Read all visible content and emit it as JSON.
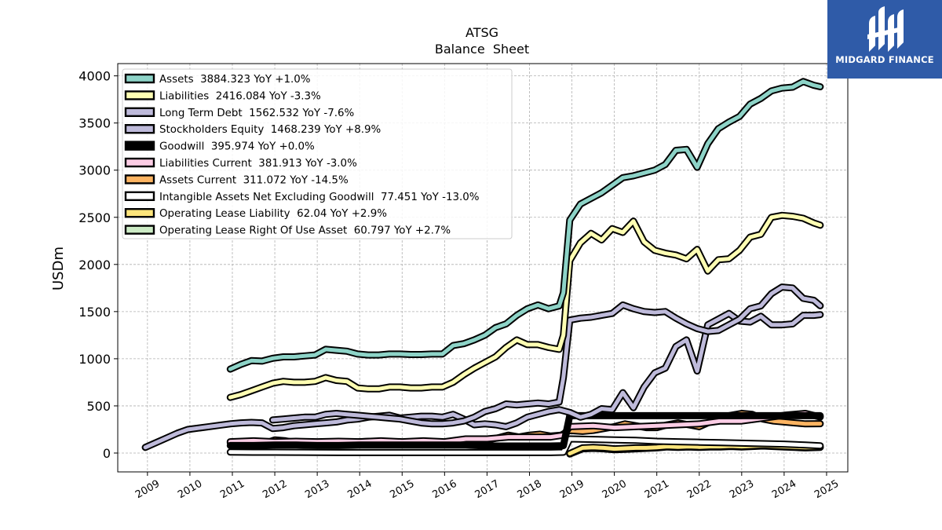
{
  "brand": {
    "name": "MIDGARD FINANCE"
  },
  "chart_data": {
    "type": "line",
    "title": "ATSG",
    "subtitle": "Balance  Sheet",
    "ylabel": "USDm",
    "xlabel": "",
    "ylim": [
      -200,
      4130
    ],
    "xlim": [
      2008.3,
      2025.5
    ],
    "yticks": [
      0,
      500,
      1000,
      1500,
      2000,
      2500,
      3000,
      3500,
      4000
    ],
    "xticks": [
      "2009",
      "2010",
      "2011",
      "2012",
      "2013",
      "2014",
      "2015",
      "2016",
      "2017",
      "2018",
      "2019",
      "2020",
      "2021",
      "2022",
      "2023",
      "2024",
      "2025"
    ],
    "grid": true,
    "legend_position": "top-left",
    "series": [
      {
        "name": "Assets  3884.323 YoY +1.0%",
        "color": "#8dd3c7",
        "x": [
          2010.95,
          2011.2,
          2011.45,
          2011.7,
          2011.95,
          2012.2,
          2012.45,
          2012.7,
          2012.95,
          2013.2,
          2013.45,
          2013.7,
          2013.95,
          2014.2,
          2014.45,
          2014.7,
          2014.95,
          2015.2,
          2015.45,
          2015.7,
          2015.95,
          2016.2,
          2016.45,
          2016.7,
          2016.95,
          2017.2,
          2017.45,
          2017.7,
          2017.95,
          2018.2,
          2018.45,
          2018.7,
          2018.8,
          2018.95,
          2019.2,
          2019.45,
          2019.7,
          2019.95,
          2020.2,
          2020.45,
          2020.7,
          2020.95,
          2021.2,
          2021.45,
          2021.7,
          2021.95,
          2022.2,
          2022.45,
          2022.7,
          2022.95,
          2023.2,
          2023.45,
          2023.7,
          2023.95,
          2024.2,
          2024.45,
          2024.7,
          2024.85
        ],
        "values": [
          890,
          940,
          980,
          975,
          1005,
          1020,
          1020,
          1030,
          1040,
          1100,
          1090,
          1080,
          1050,
          1040,
          1040,
          1050,
          1050,
          1045,
          1045,
          1050,
          1050,
          1140,
          1160,
          1200,
          1250,
          1330,
          1370,
          1460,
          1530,
          1570,
          1530,
          1560,
          1700,
          2470,
          2640,
          2700,
          2760,
          2840,
          2920,
          2940,
          2970,
          3000,
          3060,
          3210,
          3220,
          3030,
          3280,
          3440,
          3510,
          3570,
          3700,
          3760,
          3840,
          3870,
          3880,
          3940,
          3900,
          3884
        ]
      },
      {
        "name": "Liabilities  2416.084 YoY -3.3%",
        "color": "#ffffb3",
        "x": [
          2010.95,
          2011.2,
          2011.45,
          2011.7,
          2011.95,
          2012.2,
          2012.45,
          2012.7,
          2012.95,
          2013.2,
          2013.45,
          2013.7,
          2013.95,
          2014.2,
          2014.45,
          2014.7,
          2014.95,
          2015.2,
          2015.45,
          2015.7,
          2015.95,
          2016.2,
          2016.45,
          2016.7,
          2016.95,
          2017.2,
          2017.45,
          2017.7,
          2017.95,
          2018.2,
          2018.45,
          2018.7,
          2018.8,
          2018.95,
          2019.2,
          2019.45,
          2019.7,
          2019.95,
          2020.2,
          2020.45,
          2020.7,
          2020.95,
          2021.2,
          2021.45,
          2021.7,
          2021.95,
          2022.2,
          2022.45,
          2022.7,
          2022.95,
          2023.2,
          2023.45,
          2023.7,
          2023.95,
          2024.2,
          2024.45,
          2024.7,
          2024.85
        ],
        "values": [
          590,
          620,
          660,
          700,
          740,
          760,
          750,
          750,
          760,
          800,
          770,
          760,
          690,
          680,
          680,
          700,
          700,
          690,
          690,
          700,
          700,
          750,
          830,
          900,
          960,
          1020,
          1120,
          1200,
          1150,
          1150,
          1120,
          1100,
          1250,
          2040,
          2230,
          2330,
          2260,
          2380,
          2340,
          2460,
          2240,
          2150,
          2120,
          2100,
          2060,
          2160,
          1930,
          2050,
          2060,
          2150,
          2290,
          2320,
          2500,
          2520,
          2510,
          2490,
          2440,
          2416
        ]
      },
      {
        "name": "Long Term Debt  1562.532 YoY -7.6%",
        "color": "#bebada",
        "x": [
          2011.95,
          2012.2,
          2012.45,
          2012.7,
          2012.95,
          2013.2,
          2013.45,
          2013.7,
          2013.95,
          2014.2,
          2014.45,
          2014.7,
          2014.95,
          2015.2,
          2015.45,
          2015.7,
          2015.95,
          2016.2,
          2016.45,
          2016.7,
          2016.95,
          2017.2,
          2017.45,
          2017.7,
          2017.95,
          2018.2,
          2018.45,
          2018.7,
          2018.8,
          2018.95,
          2019.2,
          2019.45,
          2019.7,
          2019.95,
          2020.2,
          2020.45,
          2020.7,
          2020.95,
          2021.2,
          2021.45,
          2021.7,
          2021.95,
          2022.2,
          2022.45,
          2022.7,
          2022.95,
          2023.2,
          2023.45,
          2023.7,
          2023.95,
          2024.2,
          2024.45,
          2024.7,
          2024.85
        ],
        "values": [
          350,
          360,
          370,
          380,
          380,
          410,
          420,
          410,
          400,
          390,
          380,
          370,
          360,
          340,
          320,
          310,
          310,
          320,
          340,
          380,
          440,
          470,
          520,
          510,
          520,
          530,
          520,
          540,
          800,
          1410,
          1430,
          1440,
          1460,
          1480,
          1570,
          1530,
          1500,
          1490,
          1500,
          1430,
          1370,
          1320,
          1290,
          1300,
          1360,
          1420,
          1530,
          1560,
          1690,
          1760,
          1750,
          1640,
          1620,
          1562
        ]
      },
      {
        "name": "Stockholders Equity  1468.239 YoY +8.9%",
        "color": "#bebada",
        "x": [
          2008.95,
          2009.2,
          2009.45,
          2009.7,
          2009.95,
          2010.2,
          2010.45,
          2010.7,
          2010.95,
          2011.2,
          2011.45,
          2011.7,
          2011.95,
          2012.2,
          2012.45,
          2012.7,
          2012.95,
          2013.2,
          2013.45,
          2013.7,
          2013.95,
          2014.2,
          2014.45,
          2014.7,
          2014.95,
          2015.2,
          2015.45,
          2015.7,
          2015.95,
          2016.2,
          2016.45,
          2016.7,
          2016.95,
          2017.2,
          2017.45,
          2017.7,
          2017.95,
          2018.2,
          2018.45,
          2018.7,
          2018.95,
          2019.2,
          2019.45,
          2019.7,
          2019.95,
          2020.2,
          2020.45,
          2020.7,
          2020.95,
          2021.2,
          2021.45,
          2021.7,
          2021.95,
          2022.2,
          2022.45,
          2022.7,
          2022.95,
          2023.2,
          2023.45,
          2023.7,
          2023.95,
          2024.2,
          2024.45,
          2024.7,
          2024.85
        ],
        "values": [
          60,
          110,
          160,
          210,
          250,
          265,
          280,
          295,
          310,
          320,
          325,
          320,
          260,
          270,
          290,
          300,
          310,
          320,
          330,
          350,
          360,
          380,
          390,
          400,
          370,
          380,
          390,
          390,
          380,
          410,
          360,
          300,
          310,
          300,
          280,
          320,
          380,
          410,
          440,
          460,
          430,
          380,
          410,
          470,
          460,
          640,
          480,
          700,
          850,
          900,
          1130,
          1200,
          870,
          1360,
          1420,
          1480,
          1400,
          1390,
          1450,
          1360,
          1360,
          1370,
          1460,
          1460,
          1468
        ]
      },
      {
        "name": "Goodwill  395.974 YoY +0.0%",
        "color": "#000000",
        "x": [
          2010.95,
          2011.5,
          2012.0,
          2012.5,
          2013.0,
          2013.5,
          2014.0,
          2014.5,
          2015.0,
          2015.5,
          2016.0,
          2016.5,
          2017.0,
          2017.5,
          2018.0,
          2018.5,
          2018.8,
          2018.95,
          2019.5,
          2020.0,
          2020.5,
          2021.0,
          2021.5,
          2022.0,
          2022.5,
          2023.0,
          2023.5,
          2024.0,
          2024.5,
          2024.85
        ],
        "values": [
          80,
          80,
          85,
          85,
          80,
          80,
          85,
          85,
          85,
          85,
          85,
          85,
          75,
          75,
          75,
          75,
          78,
          396,
          396,
          396,
          396,
          396,
          396,
          396,
          396,
          396,
          396,
          396,
          396,
          396
        ]
      },
      {
        "name": "Liabilities Current  381.913 YoY -3.0%",
        "color": "#fccde5",
        "x": [
          2010.95,
          2011.5,
          2012.0,
          2012.5,
          2013.0,
          2013.5,
          2014.0,
          2014.5,
          2015.0,
          2015.5,
          2016.0,
          2016.5,
          2017.0,
          2017.5,
          2018.0,
          2018.5,
          2018.8,
          2018.95,
          2019.5,
          2020.0,
          2020.5,
          2021.0,
          2021.5,
          2022.0,
          2022.5,
          2023.0,
          2023.5,
          2024.0,
          2024.5,
          2024.85
        ],
        "values": [
          120,
          130,
          120,
          125,
          120,
          125,
          120,
          130,
          120,
          130,
          120,
          150,
          150,
          170,
          170,
          170,
          190,
          280,
          290,
          270,
          280,
          290,
          300,
          310,
          340,
          340,
          370,
          400,
          420,
          382
        ]
      },
      {
        "name": "Assets Current  311.072 YoY -14.5%",
        "color": "#fdb462",
        "x": [
          2010.95,
          2011.25,
          2011.5,
          2011.75,
          2012.0,
          2012.25,
          2012.5,
          2012.75,
          2013.0,
          2013.25,
          2013.5,
          2013.75,
          2014.0,
          2014.25,
          2014.5,
          2014.75,
          2015.0,
          2015.25,
          2015.5,
          2015.75,
          2016.0,
          2016.25,
          2016.5,
          2016.75,
          2017.0,
          2017.25,
          2017.5,
          2017.75,
          2018.0,
          2018.25,
          2018.5,
          2018.75,
          2018.95,
          2019.25,
          2019.5,
          2019.75,
          2020.0,
          2020.25,
          2020.5,
          2020.75,
          2021.0,
          2021.25,
          2021.5,
          2021.75,
          2022.0,
          2022.25,
          2022.5,
          2022.75,
          2023.0,
          2023.25,
          2023.5,
          2023.75,
          2024.0,
          2024.25,
          2024.5,
          2024.85
        ],
        "values": [
          110,
          115,
          110,
          100,
          140,
          130,
          110,
          105,
          110,
          120,
          110,
          110,
          120,
          125,
          110,
          120,
          110,
          110,
          100,
          110,
          110,
          130,
          100,
          150,
          140,
          160,
          190,
          170,
          190,
          200,
          180,
          190,
          240,
          230,
          240,
          260,
          280,
          310,
          290,
          270,
          270,
          300,
          320,
          300,
          280,
          330,
          380,
          400,
          420,
          410,
          360,
          340,
          330,
          320,
          310,
          311
        ]
      },
      {
        "name": "Intangible Assets Net Excluding Goodwill  77.451 YoY -13.0%",
        "color": "#ffffff",
        "x": [
          2010.95,
          2011.5,
          2012.0,
          2012.5,
          2013.0,
          2013.5,
          2014.0,
          2014.5,
          2015.0,
          2015.5,
          2016.0,
          2016.5,
          2017.0,
          2017.5,
          2018.0,
          2018.5,
          2018.8,
          2018.95,
          2019.5,
          2020.0,
          2020.5,
          2021.0,
          2021.5,
          2022.0,
          2022.5,
          2023.0,
          2023.5,
          2024.0,
          2024.5,
          2024.85
        ],
        "values": [
          10,
          8,
          8,
          7,
          6,
          5,
          5,
          5,
          5,
          5,
          5,
          5,
          5,
          5,
          5,
          5,
          8,
          150,
          145,
          140,
          135,
          125,
          120,
          115,
          110,
          105,
          100,
          95,
          85,
          77
        ]
      },
      {
        "name": "Operating Lease Liability  62.04 YoY +2.9%",
        "color": "#fde57c",
        "x": [
          2018.95,
          2019.25,
          2019.5,
          2019.75,
          2020.0,
          2020.25,
          2020.5,
          2020.75,
          2021.0,
          2021.25,
          2021.5,
          2021.75,
          2022.0,
          2022.25,
          2022.5,
          2022.75,
          2023.0,
          2023.25,
          2023.5,
          2023.75,
          2024.0,
          2024.25,
          2024.5,
          2024.85
        ],
        "values": [
          -5,
          55,
          60,
          55,
          45,
          50,
          55,
          55,
          60,
          70,
          65,
          70,
          65,
          70,
          70,
          75,
          70,
          75,
          80,
          75,
          70,
          65,
          60,
          62
        ]
      },
      {
        "name": "Operating Lease Right Of Use Asset  60.797 YoY +2.7%",
        "color": "#ccebc5",
        "x": [
          2018.95,
          2019.25,
          2019.5,
          2019.75,
          2020.0,
          2020.25,
          2020.5,
          2020.75,
          2021.0,
          2021.25,
          2021.5,
          2021.75,
          2022.0,
          2022.25,
          2022.5,
          2022.75,
          2023.0,
          2023.25,
          2023.5,
          2023.75,
          2024.0,
          2024.25,
          2024.5,
          2024.85
        ],
        "values": [
          -10,
          45,
          50,
          45,
          35,
          40,
          45,
          50,
          55,
          65,
          60,
          65,
          60,
          65,
          65,
          70,
          65,
          70,
          75,
          70,
          65,
          60,
          55,
          61
        ]
      }
    ]
  }
}
